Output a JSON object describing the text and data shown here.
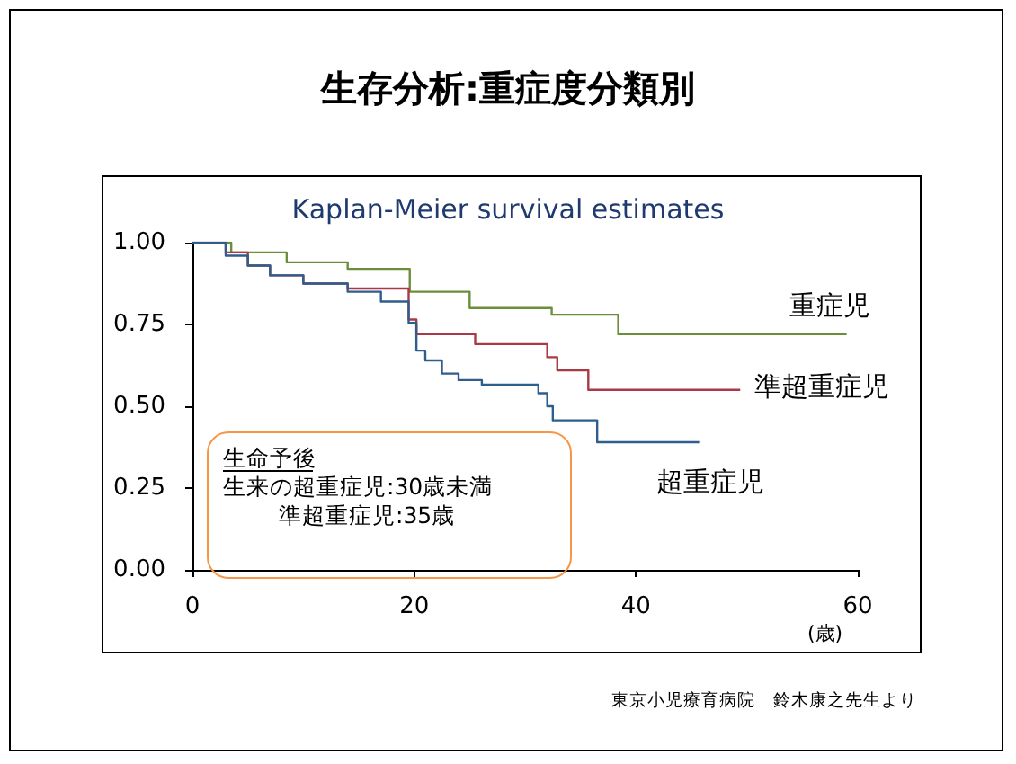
{
  "chart_data": {
    "type": "step",
    "title": "生存分析:重症度分類別",
    "subtitle": "Kaplan-Meier survival estimates",
    "xlabel": "(歳)",
    "xlim": [
      0,
      60
    ],
    "xticks": [
      0,
      20,
      40,
      60
    ],
    "ylim": [
      0,
      1
    ],
    "yticks": [
      {
        "value": 0,
        "label": "0.00"
      },
      {
        "value": 0.25,
        "label": "0.25"
      },
      {
        "value": 0.5,
        "label": "0.50"
      },
      {
        "value": 0.75,
        "label": "0.75"
      },
      {
        "value": 1,
        "label": "1.00"
      }
    ],
    "series": [
      {
        "name": "重症児",
        "color": "#6b8e3a",
        "x": [
          0,
          3.5,
          8.5,
          14,
          19.6,
          25,
          32.4,
          38.4,
          59
        ],
        "values": [
          1,
          0.97,
          0.94,
          0.92,
          0.85,
          0.8,
          0.78,
          0.72,
          0.72
        ]
      },
      {
        "name": "準超重症児",
        "color": "#a83a45",
        "x": [
          0,
          3,
          5,
          7,
          10,
          14,
          19.5,
          20.2,
          25.5,
          32,
          32.9,
          35.7,
          49.4
        ],
        "values": [
          1,
          0.97,
          0.93,
          0.9,
          0.875,
          0.86,
          0.765,
          0.72,
          0.69,
          0.65,
          0.61,
          0.55,
          0.55
        ]
      },
      {
        "name": "超重症児",
        "color": "#2f5d8c",
        "x": [
          0,
          3,
          5,
          7,
          10,
          14,
          17,
          19.5,
          20.2,
          21,
          22.5,
          24,
          26.1,
          31.2,
          32,
          32.5,
          36.5,
          45.7
        ],
        "values": [
          1,
          0.96,
          0.93,
          0.9,
          0.875,
          0.85,
          0.82,
          0.755,
          0.67,
          0.64,
          0.6,
          0.58,
          0.566,
          0.54,
          0.5,
          0.457,
          0.39,
          0.39
        ]
      }
    ],
    "annotations": [
      "生命予後",
      "生来の超重症児:30歳未満",
      "準超重症児:35歳",
      "東京小児療育病院　鈴木康之先生より"
    ]
  }
}
